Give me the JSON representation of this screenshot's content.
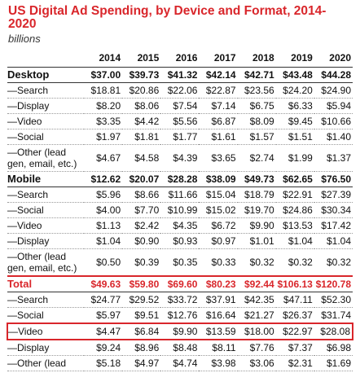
{
  "title": "US Digital Ad Spending, by Device and Format, 2014-2020",
  "subtitle": "billions",
  "table": {
    "columns": [
      "2014",
      "2015",
      "2016",
      "2017",
      "2018",
      "2019",
      "2020"
    ],
    "sections": [
      {
        "label": "Desktop",
        "values": [
          "$37.00",
          "$39.73",
          "$41.32",
          "$42.14",
          "$42.71",
          "$43.48",
          "$44.28"
        ],
        "rows": [
          {
            "label": "—Search",
            "values": [
              "$18.81",
              "$20.86",
              "$22.06",
              "$22.87",
              "$23.56",
              "$24.20",
              "$24.90"
            ]
          },
          {
            "label": "—Display",
            "values": [
              "$8.20",
              "$8.06",
              "$7.54",
              "$7.14",
              "$6.75",
              "$6.33",
              "$5.94"
            ]
          },
          {
            "label": "—Video",
            "values": [
              "$3.35",
              "$4.42",
              "$5.56",
              "$6.87",
              "$8.09",
              "$9.45",
              "$10.66"
            ]
          },
          {
            "label": "—Social",
            "values": [
              "$1.97",
              "$1.81",
              "$1.77",
              "$1.61",
              "$1.57",
              "$1.51",
              "$1.40"
            ]
          },
          {
            "label": "—Other (lead gen, email, etc.)",
            "values": [
              "$4.67",
              "$4.58",
              "$4.39",
              "$3.65",
              "$2.74",
              "$1.99",
              "$1.37"
            ]
          }
        ]
      },
      {
        "label": "Mobile",
        "values": [
          "$12.62",
          "$20.07",
          "$28.28",
          "$38.09",
          "$49.73",
          "$62.65",
          "$76.50"
        ],
        "rows": [
          {
            "label": "—Search",
            "values": [
              "$5.96",
              "$8.66",
              "$11.66",
              "$15.04",
              "$18.79",
              "$22.91",
              "$27.39"
            ]
          },
          {
            "label": "—Social",
            "values": [
              "$4.00",
              "$7.70",
              "$10.99",
              "$15.02",
              "$19.70",
              "$24.86",
              "$30.34"
            ]
          },
          {
            "label": "—Video",
            "values": [
              "$1.13",
              "$2.42",
              "$4.35",
              "$6.72",
              "$9.90",
              "$13.53",
              "$17.42"
            ]
          },
          {
            "label": "—Display",
            "values": [
              "$1.04",
              "$0.90",
              "$0.93",
              "$0.97",
              "$1.01",
              "$1.04",
              "$1.04"
            ]
          },
          {
            "label": "—Other (lead gen, email, etc.)",
            "values": [
              "$0.50",
              "$0.39",
              "$0.35",
              "$0.33",
              "$0.32",
              "$0.32",
              "$0.32"
            ]
          }
        ]
      },
      {
        "label": "Total",
        "values": [
          "$49.63",
          "$59.80",
          "$69.60",
          "$80.23",
          "$92.44",
          "$106.13",
          "$120.78"
        ],
        "rows": [
          {
            "label": "—Search",
            "values": [
              "$24.77",
              "$29.52",
              "$33.72",
              "$37.91",
              "$42.35",
              "$47.11",
              "$52.30"
            ]
          },
          {
            "label": "—Social",
            "values": [
              "$5.97",
              "$9.51",
              "$12.76",
              "$16.64",
              "$21.27",
              "$26.37",
              "$31.74"
            ]
          },
          {
            "label": "—Video",
            "values": [
              "$4.47",
              "$6.84",
              "$9.90",
              "$13.59",
              "$18.00",
              "$22.97",
              "$28.08"
            ]
          },
          {
            "label": "—Display",
            "values": [
              "$9.24",
              "$8.96",
              "$8.48",
              "$8.11",
              "$7.76",
              "$7.37",
              "$6.98"
            ]
          },
          {
            "label": "—Other (lead",
            "values": [
              "$5.18",
              "$4.97",
              "$4.74",
              "$3.98",
              "$3.06",
              "$2.31",
              "$1.69"
            ]
          }
        ]
      }
    ]
  }
}
